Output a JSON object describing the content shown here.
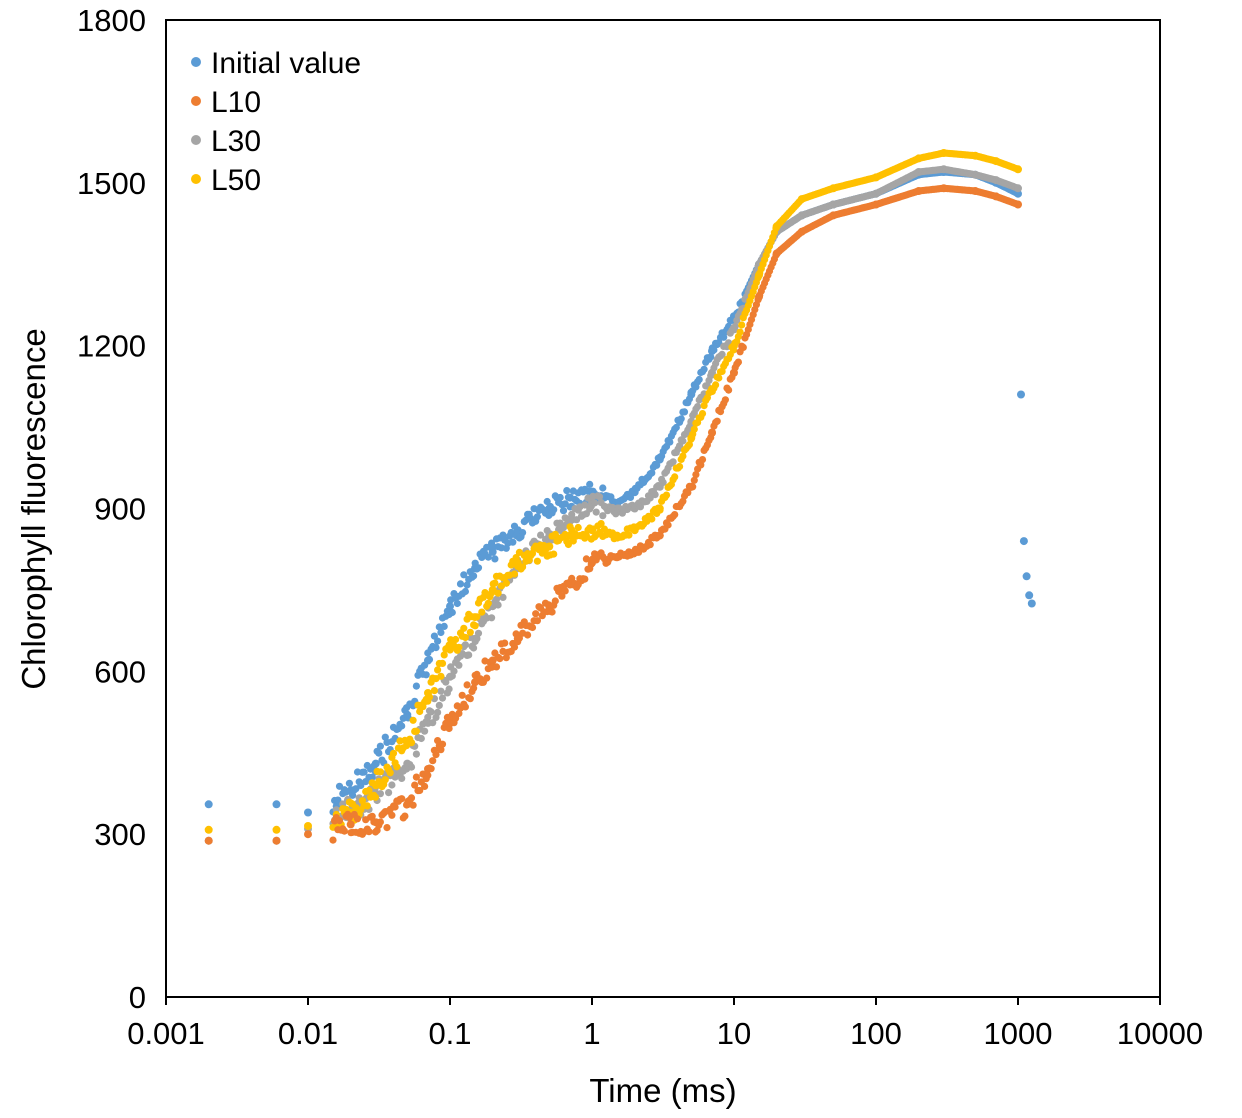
{
  "chart_data": {
    "type": "scatter",
    "title": "",
    "xlabel": "Time (ms)",
    "ylabel": "Chlorophyll fluorescence",
    "x_scale": "log",
    "xlim": [
      0.001,
      10000
    ],
    "ylim": [
      0,
      1800
    ],
    "x_ticks": [
      "0.001",
      "0.01",
      "0.1",
      "1",
      "10",
      "100",
      "1000",
      "10000"
    ],
    "y_ticks": [
      "0",
      "300",
      "600",
      "900",
      "1200",
      "1500",
      "1800"
    ],
    "grid": false,
    "legend_position": "top-left",
    "series": [
      {
        "name": "Initial value",
        "color": "#5B9BD5",
        "x": [
          0.002,
          0.006,
          0.01,
          0.02,
          0.03,
          0.05,
          0.07,
          0.1,
          0.15,
          0.2,
          0.3,
          0.5,
          0.7,
          1,
          1.5,
          2,
          3,
          5,
          7,
          10,
          15,
          20,
          30,
          50,
          100,
          200,
          300,
          500,
          700,
          1000,
          1050,
          1100,
          1150,
          1200,
          1250
        ],
        "y": [
          355,
          355,
          340,
          380,
          430,
          520,
          620,
          720,
          790,
          820,
          860,
          900,
          920,
          930,
          910,
          930,
          990,
          1110,
          1190,
          1250,
          1350,
          1410,
          1440,
          1460,
          1480,
          1515,
          1520,
          1515,
          1500,
          1480,
          1110,
          840,
          775,
          740,
          725
        ]
      },
      {
        "name": "L10",
        "color": "#ED7D31",
        "x": [
          0.002,
          0.006,
          0.01,
          0.02,
          0.03,
          0.05,
          0.07,
          0.1,
          0.15,
          0.2,
          0.3,
          0.5,
          0.7,
          1,
          1.5,
          2,
          3,
          5,
          7,
          10,
          15,
          20,
          30,
          50,
          100,
          200,
          300,
          500,
          700,
          1000
        ],
        "y": [
          288,
          288,
          300,
          318,
          322,
          355,
          420,
          510,
          580,
          620,
          660,
          720,
          760,
          800,
          810,
          820,
          850,
          940,
          1040,
          1150,
          1290,
          1370,
          1410,
          1440,
          1460,
          1485,
          1490,
          1485,
          1475,
          1460
        ]
      },
      {
        "name": "L30",
        "color": "#A5A5A5",
        "x": [
          0.002,
          0.006,
          0.01,
          0.02,
          0.03,
          0.05,
          0.07,
          0.1,
          0.15,
          0.2,
          0.3,
          0.5,
          0.7,
          1,
          1.5,
          2,
          3,
          5,
          7,
          10,
          15,
          20,
          30,
          50,
          100,
          200,
          300,
          500,
          700,
          1000
        ],
        "y": [
          288,
          288,
          310,
          345,
          375,
          430,
          505,
          590,
          660,
          720,
          790,
          850,
          880,
          910,
          895,
          900,
          940,
          1060,
          1150,
          1230,
          1350,
          1410,
          1440,
          1460,
          1480,
          1520,
          1525,
          1515,
          1505,
          1490
        ]
      },
      {
        "name": "L50",
        "color": "#FFC000",
        "x": [
          0.002,
          0.006,
          0.01,
          0.02,
          0.03,
          0.05,
          0.07,
          0.1,
          0.15,
          0.2,
          0.3,
          0.5,
          0.7,
          1,
          1.5,
          2,
          3,
          5,
          7,
          10,
          15,
          20,
          30,
          50,
          100,
          200,
          300,
          500,
          700,
          1000
        ],
        "y": [
          308,
          308,
          315,
          340,
          390,
          470,
          560,
          640,
          700,
          750,
          800,
          830,
          850,
          860,
          850,
          860,
          900,
          1030,
          1120,
          1200,
          1330,
          1420,
          1470,
          1490,
          1510,
          1545,
          1555,
          1550,
          1540,
          1525
        ]
      }
    ]
  }
}
